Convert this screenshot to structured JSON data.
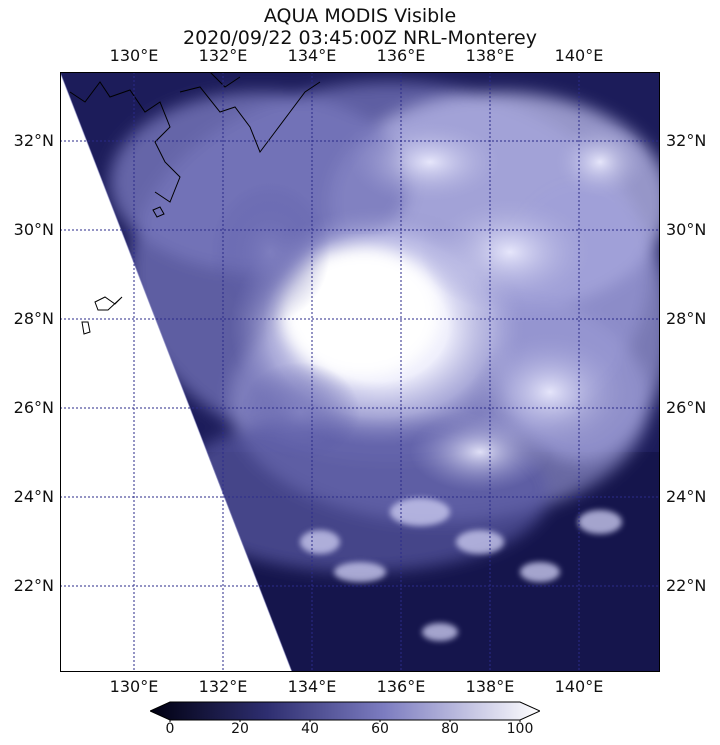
{
  "title": {
    "line1": "AQUA MODIS Visible",
    "line2": "2020/09/22 03:45:00Z NRL-Monterey"
  },
  "lon_labels": [
    "130°E",
    "132°E",
    "134°E",
    "136°E",
    "138°E",
    "140°E"
  ],
  "lat_labels": [
    "32°N",
    "30°N",
    "28°N",
    "26°N",
    "24°N",
    "22°N"
  ],
  "colorbar": {
    "ticks": [
      "0",
      "20",
      "40",
      "60",
      "80",
      "100"
    ],
    "colors": [
      "#000010",
      "#3c3c82",
      "#8c8cc8",
      "#ffffff"
    ]
  },
  "image": {
    "subject": "satellite visible imagery of tropical storm over western Pacific",
    "ocean_color": "#1c1c5a",
    "cloud_color": "#f4f4ff",
    "grid_color": "#2a2a8a"
  }
}
